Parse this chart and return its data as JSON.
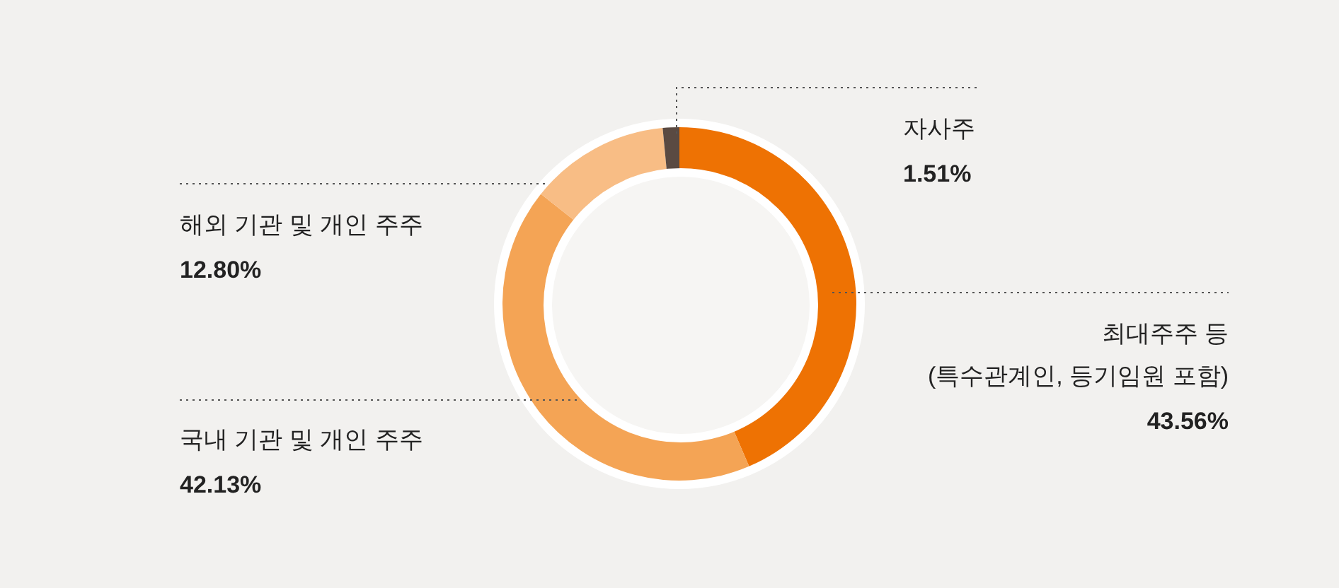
{
  "chart_data": {
    "type": "donut",
    "categories": [
      "최대주주 등\n(특수관계인, 등기임원 포함)",
      "국내 기관 및 개인 주주",
      "해외 기관 및 개인 주주",
      "자사주"
    ],
    "values": [
      43.56,
      42.13,
      12.8,
      1.51
    ],
    "value_labels": [
      "43.56%",
      "42.13%",
      "12.80%",
      "1.51%"
    ],
    "colors": [
      "#ee7203",
      "#f4a455",
      "#f8bd85",
      "#5a4a42"
    ],
    "legend": false
  }
}
